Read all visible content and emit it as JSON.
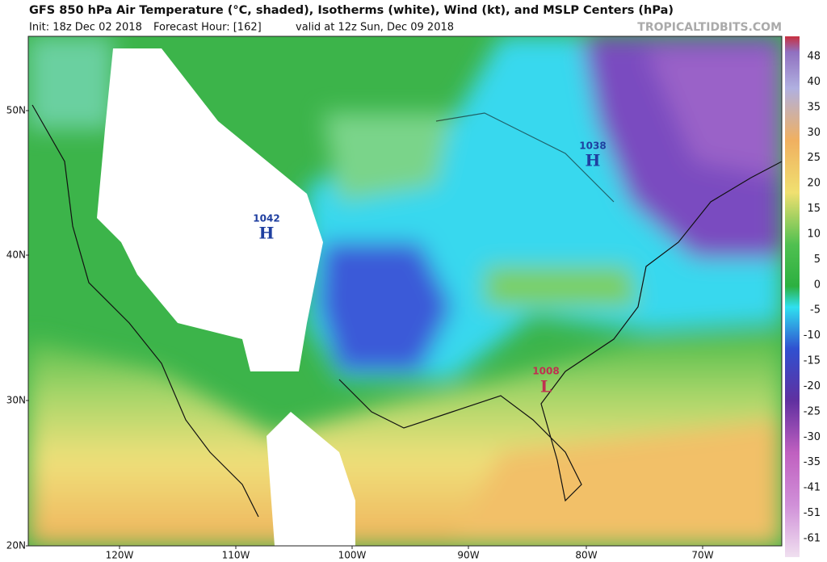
{
  "header": {
    "title": "GFS 850 hPa Air Temperature (°C, shaded), Isotherms (white), Wind (kt), and MSLP Centers (hPa)",
    "init": "Init: 18z Dec 02 2018",
    "forecast_hour": "Forecast Hour: [162]",
    "valid": "valid at 12z Sun, Dec 09 2018",
    "watermark": "TROPICALTIDBITS.COM"
  },
  "map": {
    "latitude_labels": [
      "50N",
      "40N",
      "30N",
      "20N"
    ],
    "longitude_labels": [
      "120W",
      "110W",
      "100W",
      "90W",
      "80W",
      "70W"
    ],
    "pressure_centers": [
      {
        "value": "1042",
        "symbol": "H"
      },
      {
        "value": "1038",
        "symbol": "H"
      },
      {
        "value": "1008",
        "symbol": "L"
      }
    ]
  },
  "colorbar": {
    "labels": [
      48,
      40,
      35,
      30,
      25,
      20,
      15,
      10,
      5,
      0,
      -5,
      -10,
      -15,
      -20,
      -25,
      -30,
      -35,
      -41,
      -51,
      -61
    ]
  }
}
